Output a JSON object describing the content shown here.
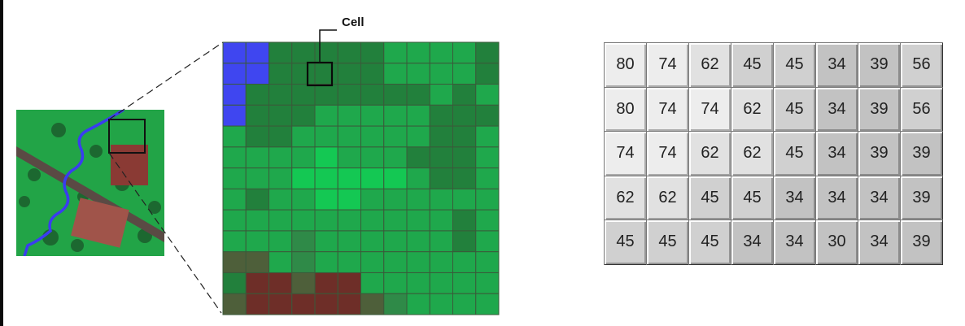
{
  "cell_label": "Cell",
  "colors": {
    "water": "#3f46f0",
    "grass_dark": "#228b3a",
    "grass": "#1cae4e",
    "grass_light": "#19cc55",
    "building": "#7a3530",
    "road": "#5a4a44",
    "tree": "#1f6a34"
  },
  "grid_cells": [
    [
      "water",
      "water",
      "dark",
      "dark",
      "dark",
      "dark",
      "dark",
      "green",
      "green",
      "green",
      "green",
      "dark"
    ],
    [
      "water",
      "water",
      "dark",
      "dark",
      "dark",
      "dark",
      "dark",
      "green",
      "green",
      "green",
      "green",
      "dark"
    ],
    [
      "water",
      "dark",
      "dark",
      "dark",
      "dark",
      "dark",
      "dark",
      "dark",
      "dark",
      "green",
      "dark",
      "green"
    ],
    [
      "water",
      "dark",
      "dark",
      "dark",
      "green",
      "green",
      "green",
      "green",
      "green",
      "dark",
      "dark",
      "dark"
    ],
    [
      "green",
      "dark",
      "dark",
      "green",
      "green",
      "green",
      "green",
      "green",
      "green",
      "dark",
      "dark",
      "green"
    ],
    [
      "green",
      "green",
      "green",
      "green",
      "bright",
      "green",
      "green",
      "green",
      "dark",
      "dark",
      "dark",
      "green"
    ],
    [
      "green",
      "green",
      "green",
      "bright",
      "bright",
      "bright",
      "bright",
      "bright",
      "green",
      "dark",
      "dark",
      "green"
    ],
    [
      "green",
      "dark",
      "green",
      "green",
      "bright",
      "bright",
      "green",
      "green",
      "green",
      "green",
      "green",
      "green"
    ],
    [
      "green",
      "green",
      "green",
      "green",
      "green",
      "green",
      "green",
      "green",
      "green",
      "green",
      "dark",
      "green"
    ],
    [
      "green",
      "green",
      "green",
      "mid",
      "green",
      "green",
      "green",
      "green",
      "green",
      "green",
      "dark",
      "green"
    ],
    [
      "olive",
      "olive",
      "green",
      "mid",
      "green",
      "green",
      "green",
      "green",
      "green",
      "green",
      "green",
      "green"
    ],
    [
      "dark",
      "brown",
      "brown",
      "olive",
      "brown",
      "brown",
      "green",
      "green",
      "green",
      "green",
      "green",
      "green"
    ],
    [
      "olive",
      "brown",
      "brown",
      "brown",
      "brown",
      "brown",
      "olive",
      "mid",
      "green",
      "green",
      "green",
      "green"
    ]
  ],
  "raster_values": [
    [
      "80",
      "74",
      "62",
      "45",
      "45",
      "34",
      "39",
      "56"
    ],
    [
      "80",
      "74",
      "74",
      "62",
      "45",
      "34",
      "39",
      "56"
    ],
    [
      "74",
      "74",
      "62",
      "62",
      "45",
      "34",
      "39",
      "39"
    ],
    [
      "62",
      "62",
      "45",
      "45",
      "34",
      "34",
      "34",
      "39"
    ],
    [
      "45",
      "45",
      "45",
      "34",
      "34",
      "30",
      "34",
      "39"
    ]
  ]
}
